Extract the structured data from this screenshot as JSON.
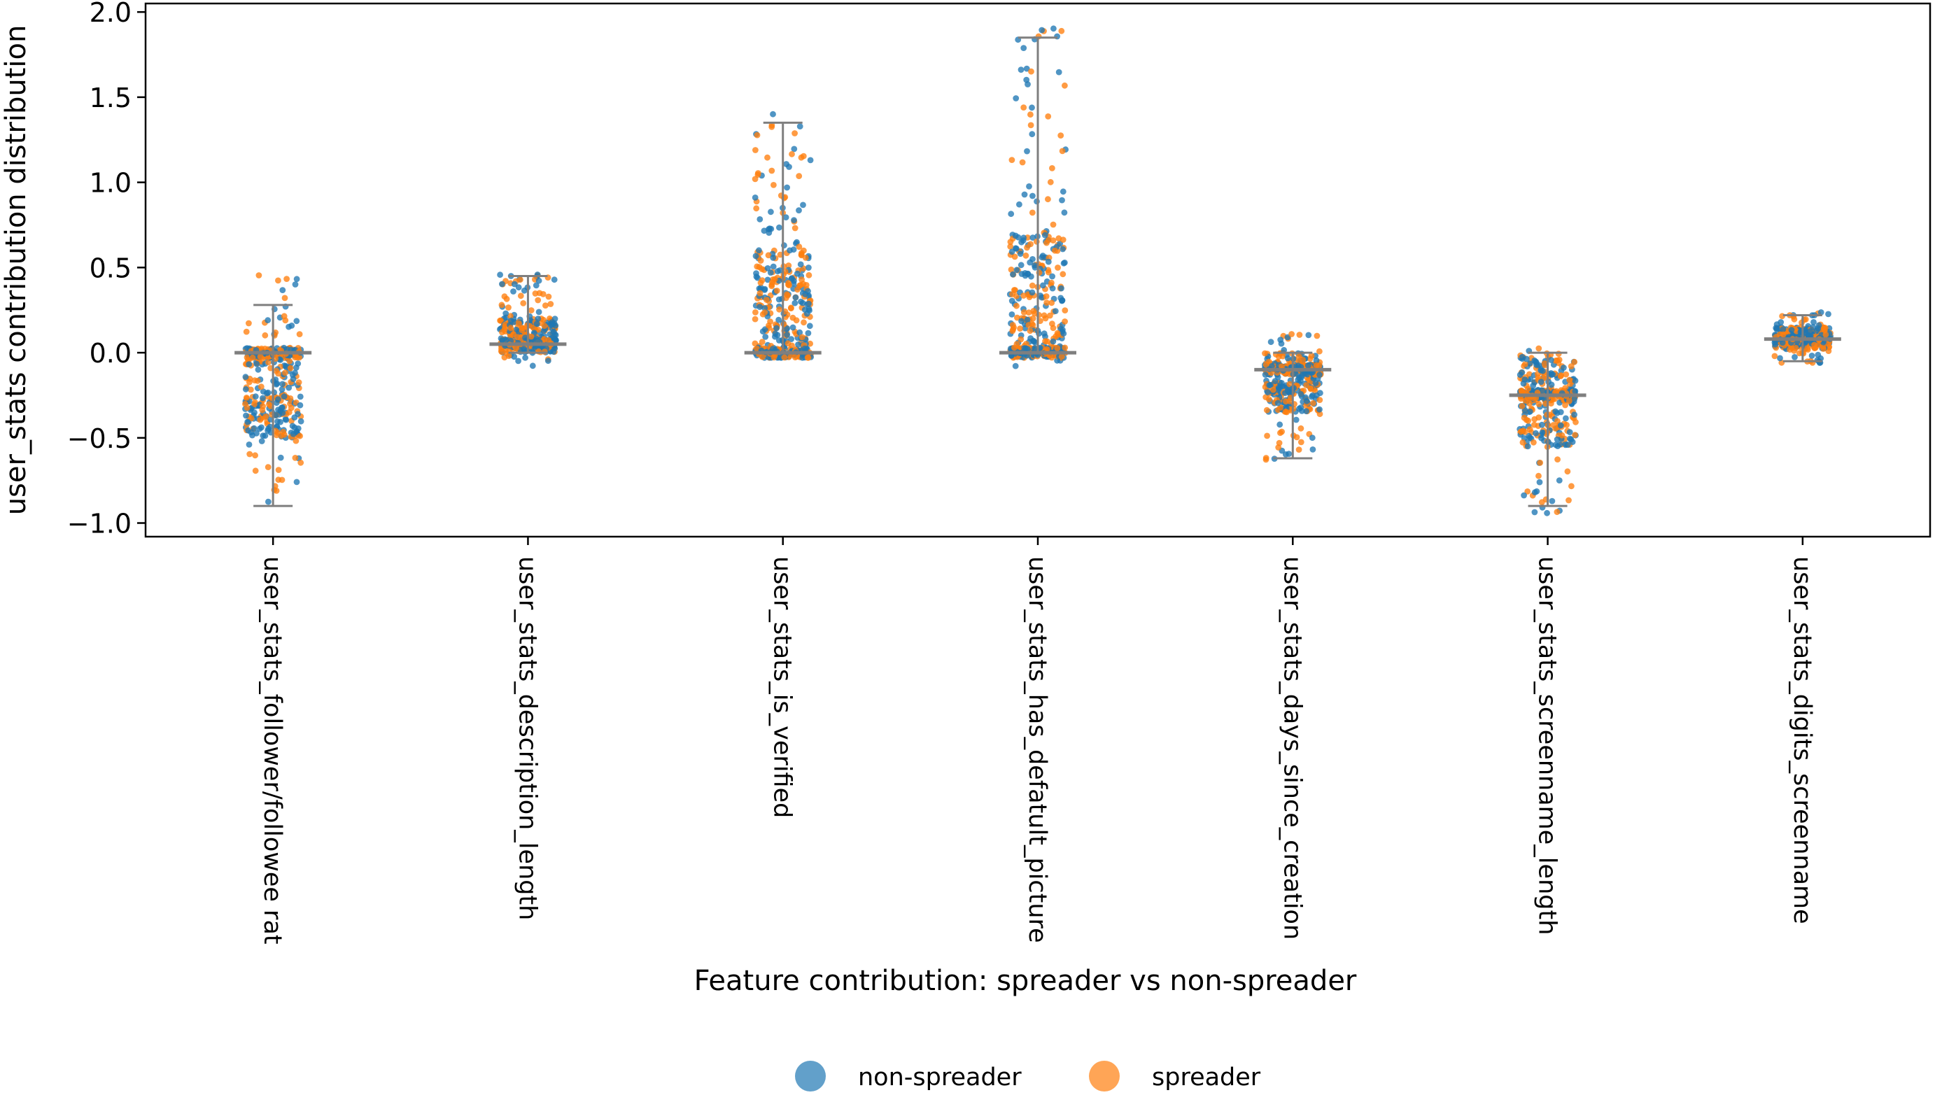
{
  "chart_data": {
    "type": "scatter",
    "subtype": "strip plot with box overlay",
    "title": "",
    "xlabel": "Feature contribution: spreader vs non-spreader",
    "ylabel": "user_stats contribution distribution",
    "ylim": [
      -1.08,
      2.05
    ],
    "yticks": [
      -1.0,
      -0.5,
      0.0,
      0.5,
      1.0,
      1.5,
      2.0
    ],
    "ytick_labels": [
      "−1.0",
      "−0.5",
      "0.0",
      "0.5",
      "1.0",
      "1.5",
      "2.0"
    ],
    "categories": [
      "user_stats_follower/followee rat",
      "user_stats_description_length",
      "user_stats_is_verified",
      "user_stats_has_defatult_picture",
      "user_stats_days_since_creation",
      "user_stats_screenname_length",
      "user_stats_digits_screenname"
    ],
    "series": [
      {
        "name": "non-spreader",
        "color": "#1f77b4"
      },
      {
        "name": "spreader",
        "color": "#ff7f0e"
      }
    ],
    "distributions": [
      {
        "category": "user_stats_follower/followee rat",
        "min": -0.92,
        "q1": -0.5,
        "median": 0.0,
        "q3": 0.0,
        "max": 0.48,
        "whisker_low": -0.9,
        "whisker_high": 0.28
      },
      {
        "category": "user_stats_description_length",
        "min": -0.08,
        "q1": 0.0,
        "median": 0.05,
        "q3": 0.2,
        "max": 0.48,
        "whisker_low": 0.0,
        "whisker_high": 0.45
      },
      {
        "category": "user_stats_is_verified",
        "min": -0.03,
        "q1": 0.0,
        "median": 0.0,
        "q3": 0.6,
        "max": 1.42,
        "whisker_low": 0.0,
        "whisker_high": 1.35
      },
      {
        "category": "user_stats_has_defatult_picture",
        "min": -0.1,
        "q1": 0.0,
        "median": 0.0,
        "q3": 0.7,
        "max": 1.92,
        "whisker_low": 0.0,
        "whisker_high": 1.85
      },
      {
        "category": "user_stats_days_since_creation",
        "min": -0.64,
        "q1": -0.35,
        "median": -0.1,
        "q3": 0.0,
        "max": 0.11,
        "whisker_low": -0.62,
        "whisker_high": 0.0
      },
      {
        "category": "user_stats_screenname_length",
        "min": -0.95,
        "q1": -0.55,
        "median": -0.25,
        "q3": 0.0,
        "max": 0.05,
        "whisker_low": -0.9,
        "whisker_high": 0.0
      },
      {
        "category": "user_stats_digits_screenname",
        "min": -0.06,
        "q1": 0.02,
        "median": 0.08,
        "q3": 0.15,
        "max": 0.24,
        "whisker_low": -0.05,
        "whisker_high": 0.22
      }
    ],
    "legend": {
      "placement": "bottom-center",
      "entries": [
        "non-spreader",
        "spreader"
      ]
    },
    "grid": false
  }
}
